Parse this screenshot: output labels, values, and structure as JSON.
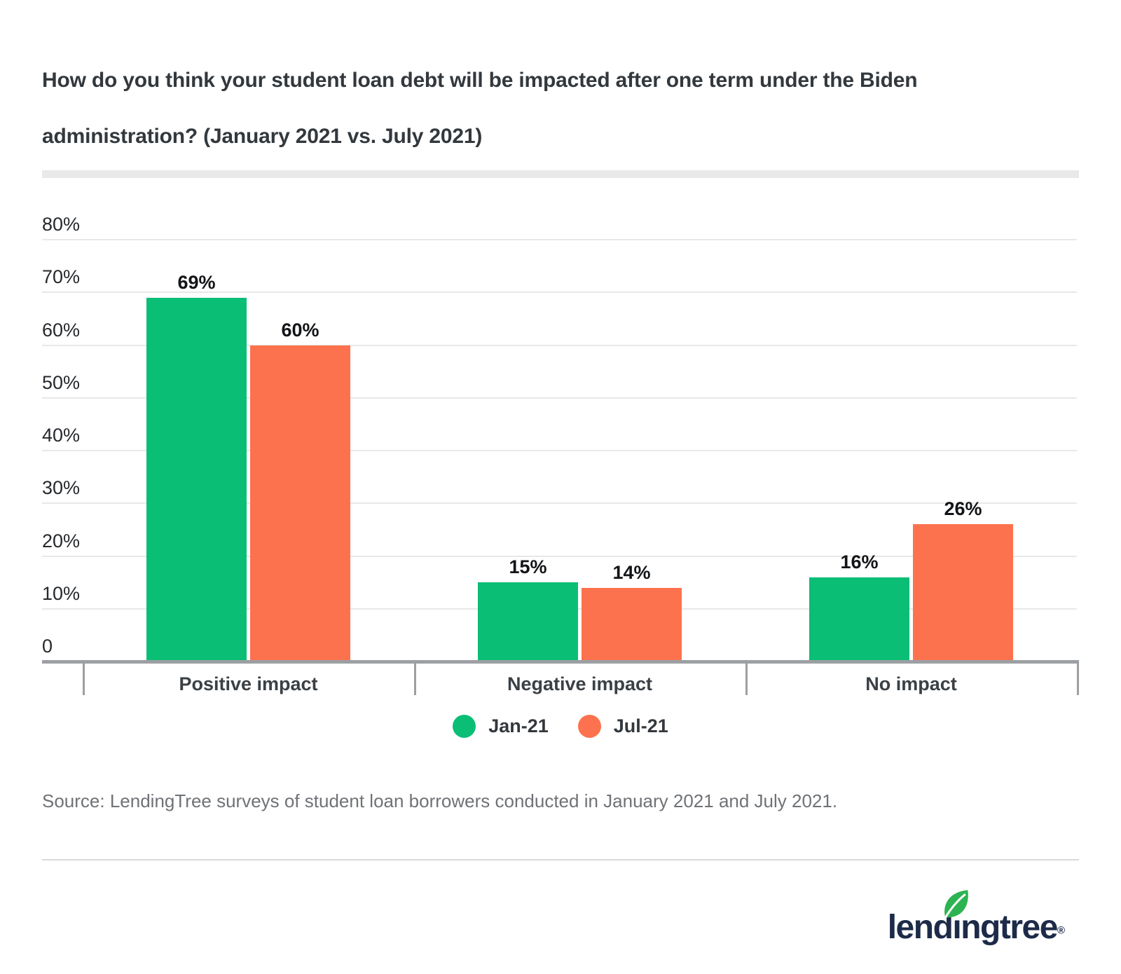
{
  "header": {
    "title_line1": "How do you think your student loan debt will be impacted after one term under the Biden",
    "title_line2": "administration? (January 2021 vs. July 2021)"
  },
  "chart_data": {
    "type": "bar",
    "title": "How do you think your student loan debt will be impacted after one term under the Biden administration? (January 2021 vs. July 2021)",
    "categories": [
      "Positive impact",
      "Negative impact",
      "No impact"
    ],
    "series": [
      {
        "name": "Jan-21",
        "color": "#0abe76",
        "values": [
          69,
          15,
          16
        ]
      },
      {
        "name": "Jul-21",
        "color": "#fd724e",
        "values": [
          60,
          14,
          26
        ]
      }
    ],
    "value_suffix": "%",
    "value_labels": [
      "69%",
      "60%",
      "15%",
      "14%",
      "16%",
      "26%"
    ],
    "y_axis": {
      "min": 0,
      "max": 80,
      "tick_step": 10,
      "tick_labels": [
        "0",
        "10%",
        "20%",
        "30%",
        "40%",
        "50%",
        "60%",
        "70%",
        "80%"
      ]
    },
    "grid": true,
    "legend_position": "bottom"
  },
  "footer": {
    "source": "Source: LendingTree surveys of student loan borrowers conducted in January 2021 and July 2021.",
    "logo": {
      "text": "lendingtree",
      "registered": "®",
      "navy": "#1d2b49",
      "leaf_green": "#2eb353"
    }
  },
  "colors": {
    "jan_green": "#0abe76",
    "jul_orange": "#fd724e",
    "axis_gray": "#9c9fa3",
    "gridline_gray": "#e8e8e8",
    "title_text": "#33383d",
    "source_text": "#6f7276"
  }
}
